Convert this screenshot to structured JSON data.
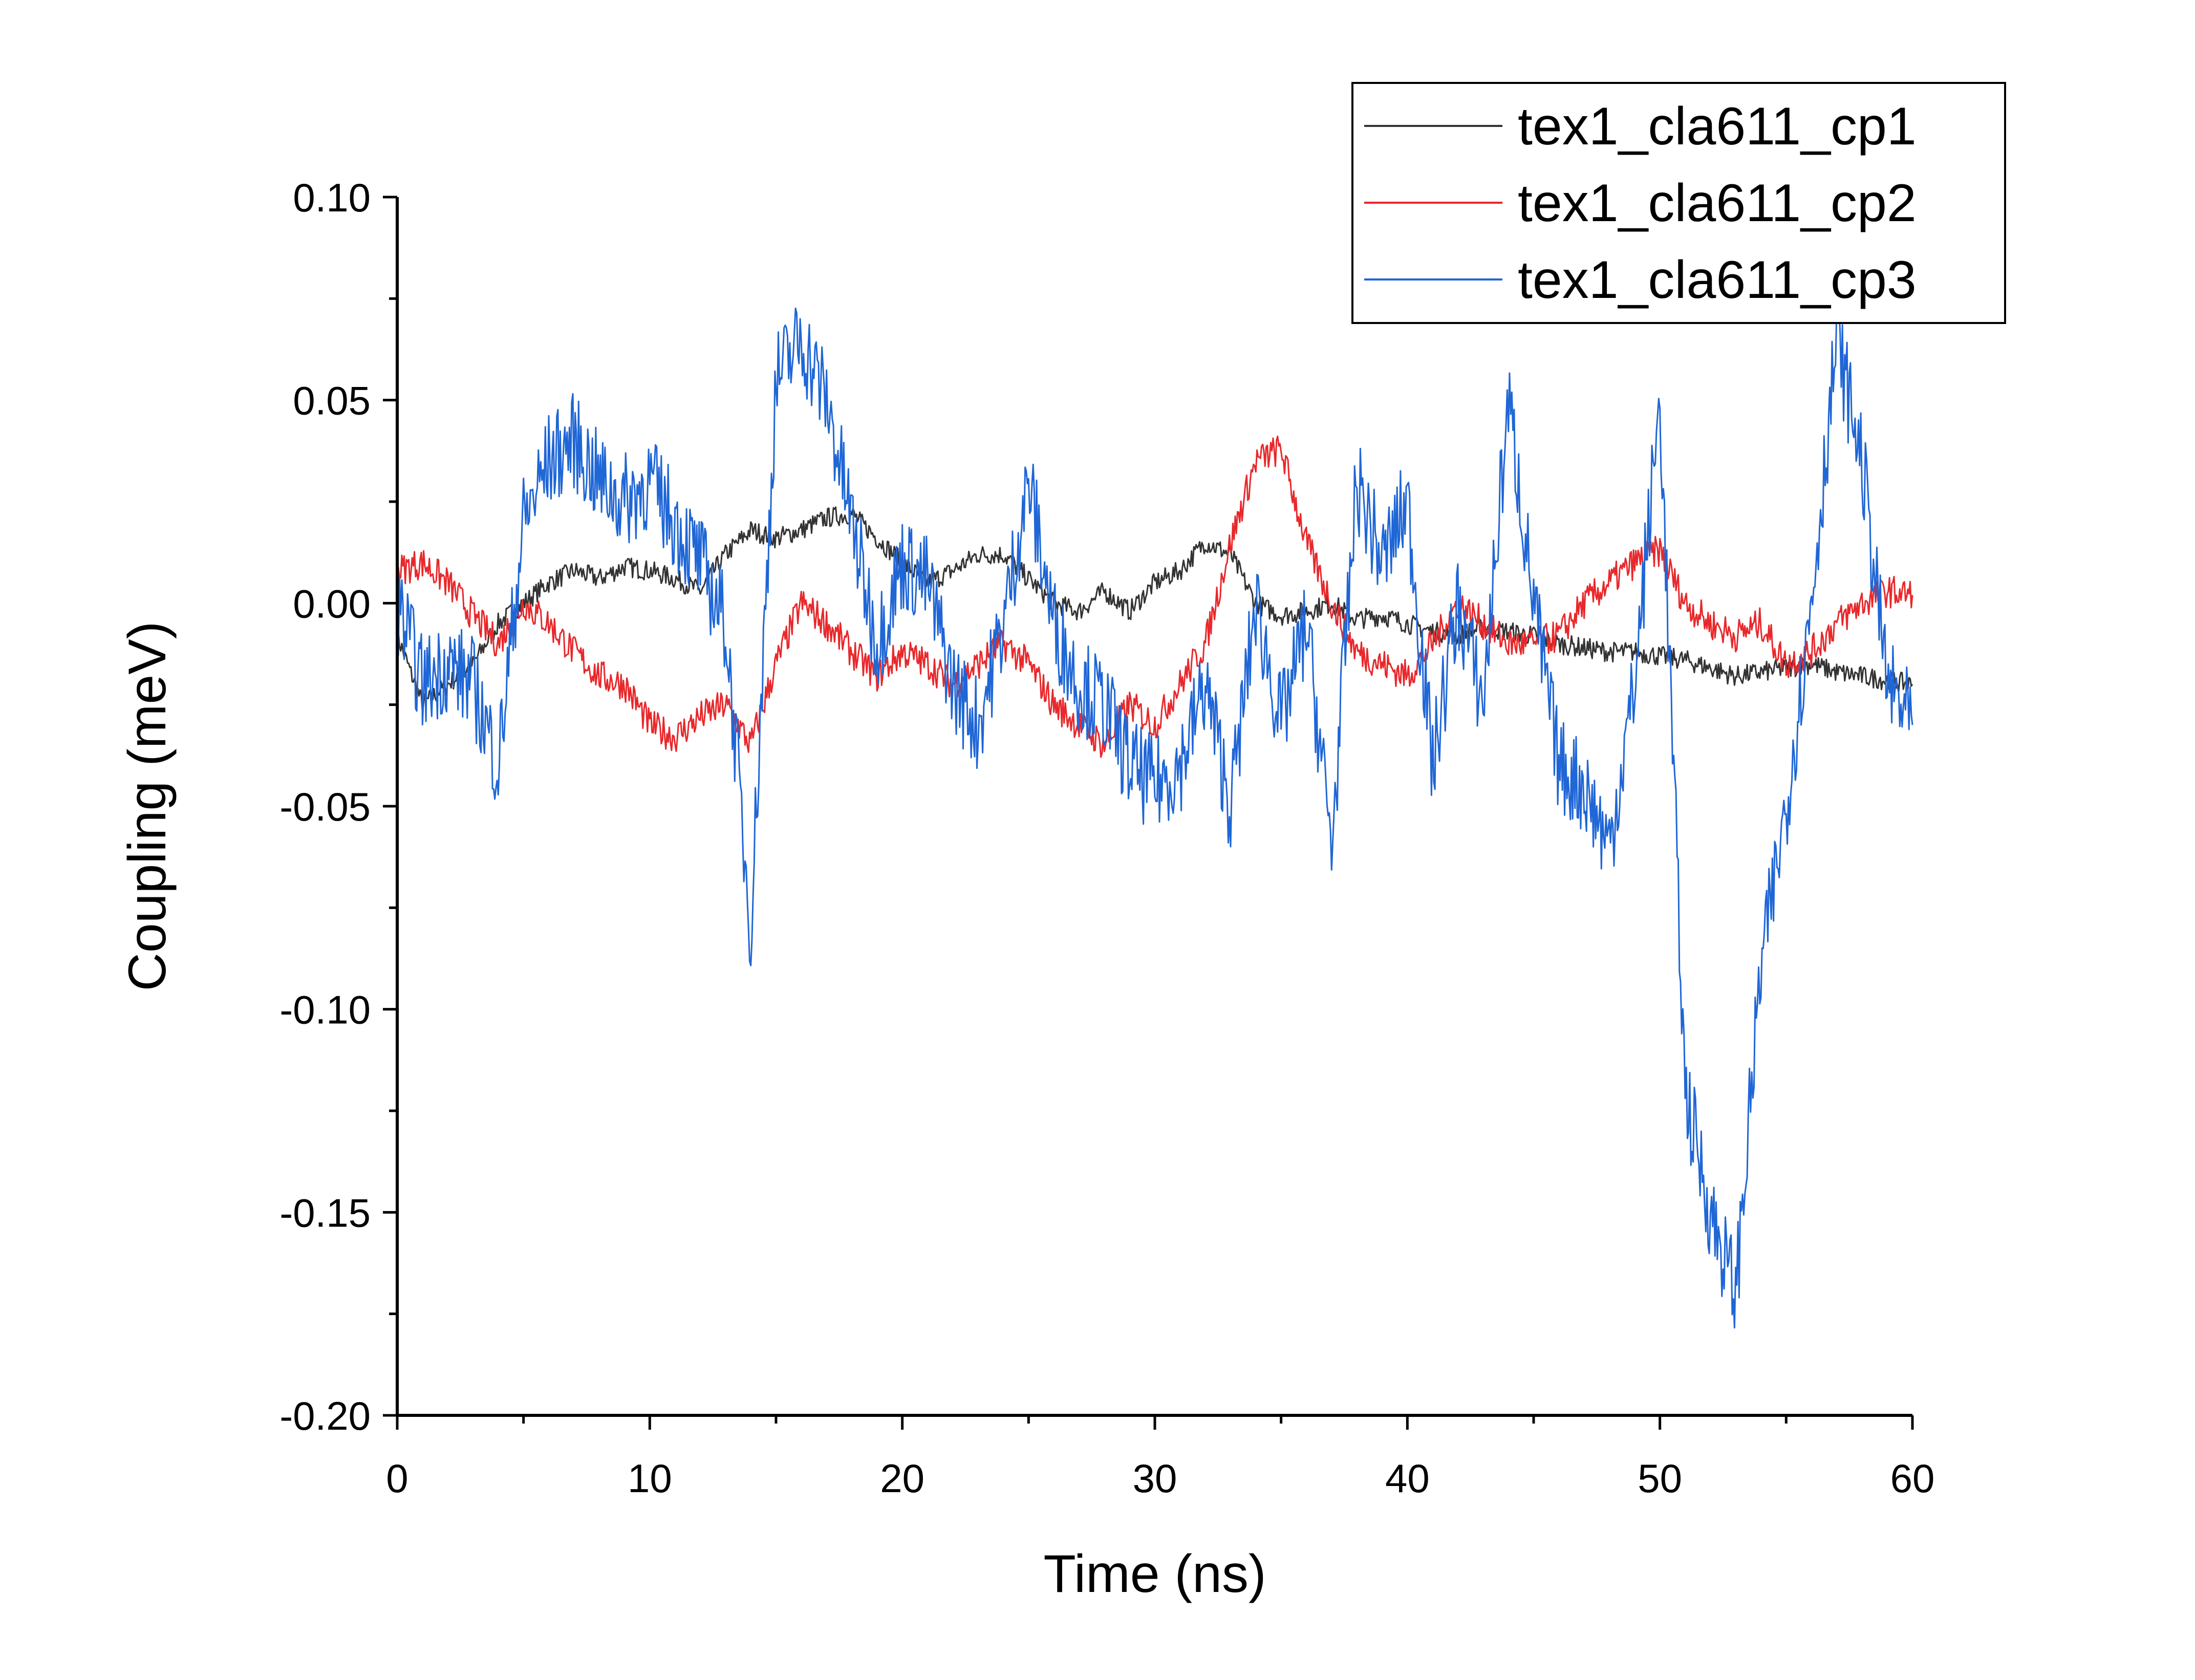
{
  "chart_data": {
    "type": "line",
    "xlabel": "Time (ns)",
    "ylabel": "Coupling (meV)",
    "xlim": [
      0,
      60
    ],
    "ylim": [
      -0.2,
      0.1
    ],
    "xticks": [
      0,
      10,
      20,
      30,
      40,
      50,
      60
    ],
    "xtick_labels": [
      "0",
      "10",
      "20",
      "30",
      "40",
      "50",
      "60"
    ],
    "yticks": [
      0.1,
      0.05,
      0.0,
      -0.05,
      -0.1,
      -0.15,
      -0.2
    ],
    "ytick_labels": [
      "0.10",
      "0.05",
      "0.00",
      "-0.05",
      "-0.10",
      "-0.15",
      "-0.20"
    ],
    "grid": false,
    "legend_position": "top-right",
    "series": [
      {
        "name": "tex1_cla611_cp1",
        "color": "#333333",
        "x": [
          0,
          1,
          2,
          3,
          4,
          5,
          6,
          7,
          8,
          9,
          10,
          11,
          12,
          13,
          14,
          15,
          16,
          17,
          18,
          19,
          20,
          21,
          22,
          23,
          24,
          25,
          26,
          27,
          28,
          29,
          30,
          31,
          32,
          33,
          34,
          35,
          36,
          37,
          38,
          39,
          40,
          41,
          42,
          43,
          44,
          45,
          46,
          47,
          48,
          49,
          50,
          51,
          52,
          53,
          54,
          55,
          56,
          57,
          58,
          59,
          60
        ],
        "y": [
          -0.008,
          -0.025,
          -0.02,
          -0.015,
          -0.005,
          0.0,
          0.005,
          0.008,
          0.006,
          0.009,
          0.008,
          0.006,
          0.003,
          0.012,
          0.018,
          0.016,
          0.018,
          0.021,
          0.022,
          0.016,
          0.01,
          0.005,
          0.008,
          0.012,
          0.012,
          0.006,
          0.0,
          -0.002,
          0.003,
          -0.002,
          0.005,
          0.008,
          0.015,
          0.012,
          0.0,
          -0.003,
          -0.002,
          0.0,
          -0.004,
          -0.003,
          -0.005,
          -0.007,
          -0.008,
          -0.006,
          -0.007,
          -0.008,
          -0.01,
          -0.011,
          -0.012,
          -0.012,
          -0.013,
          -0.014,
          -0.016,
          -0.018,
          -0.017,
          -0.016,
          -0.015,
          -0.017,
          -0.018,
          -0.019,
          -0.02
        ]
      },
      {
        "name": "tex1_cla611_cp2",
        "color": "#e8282b",
        "x": [
          0,
          1,
          2,
          3,
          4,
          5,
          6,
          7,
          8,
          9,
          10,
          11,
          12,
          13,
          14,
          15,
          16,
          17,
          18,
          19,
          20,
          21,
          22,
          23,
          24,
          25,
          26,
          27,
          28,
          29,
          30,
          31,
          32,
          33,
          34,
          35,
          36,
          37,
          38,
          39,
          40,
          41,
          42,
          43,
          44,
          45,
          46,
          47,
          48,
          49,
          50,
          51,
          52,
          53,
          54,
          55,
          56,
          57,
          58,
          59,
          60
        ],
        "y": [
          0.008,
          0.01,
          0.005,
          -0.003,
          -0.01,
          0.0,
          -0.005,
          -0.012,
          -0.018,
          -0.02,
          -0.03,
          -0.033,
          -0.028,
          -0.025,
          -0.035,
          -0.015,
          0.0,
          -0.005,
          -0.012,
          -0.018,
          -0.012,
          -0.015,
          -0.02,
          -0.015,
          -0.01,
          -0.015,
          -0.025,
          -0.03,
          -0.035,
          -0.025,
          -0.03,
          -0.02,
          -0.01,
          0.015,
          0.035,
          0.038,
          0.015,
          0.0,
          -0.012,
          -0.015,
          -0.018,
          -0.01,
          0.0,
          -0.005,
          -0.01,
          -0.01,
          -0.008,
          0.0,
          0.005,
          0.01,
          0.013,
          0.0,
          -0.005,
          -0.008,
          -0.005,
          -0.015,
          -0.012,
          -0.005,
          0.0,
          0.003,
          0.002
        ]
      },
      {
        "name": "tex1_cla611_cp3",
        "color": "#1f66d6",
        "x": [
          0,
          1,
          2,
          3,
          4,
          5,
          6,
          7,
          8,
          9,
          10,
          11,
          12,
          13,
          14,
          15,
          16,
          17,
          18,
          19,
          20,
          21,
          22,
          23,
          24,
          25,
          26,
          27,
          28,
          29,
          30,
          31,
          32,
          33,
          34,
          35,
          36,
          37,
          38,
          39,
          40,
          41,
          42,
          43,
          44,
          45,
          46,
          47,
          48,
          49,
          50,
          51,
          52,
          53,
          54,
          55,
          56,
          57,
          58,
          59,
          60
        ],
        "y": [
          0.0,
          -0.02,
          -0.015,
          -0.02,
          -0.04,
          0.02,
          0.035,
          0.04,
          0.03,
          0.025,
          0.03,
          0.02,
          0.01,
          -0.005,
          -0.08,
          0.055,
          0.065,
          0.05,
          0.02,
          -0.01,
          0.01,
          0.005,
          -0.02,
          -0.03,
          -0.005,
          0.03,
          -0.005,
          -0.02,
          -0.025,
          -0.04,
          -0.045,
          -0.04,
          -0.02,
          -0.05,
          0.0,
          -0.03,
          -0.005,
          -0.06,
          0.03,
          0.01,
          0.025,
          -0.04,
          0.0,
          -0.025,
          0.05,
          0.0,
          -0.04,
          -0.045,
          -0.06,
          -0.02,
          0.05,
          -0.12,
          -0.15,
          -0.17,
          -0.09,
          -0.05,
          0.0,
          0.065,
          0.035,
          -0.02,
          -0.03
        ]
      }
    ]
  }
}
